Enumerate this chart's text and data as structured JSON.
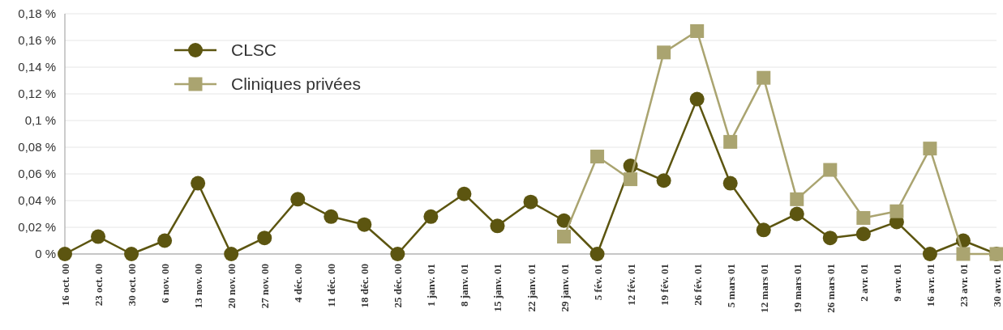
{
  "chart_data": {
    "type": "line",
    "categories": [
      "16 oct. 00",
      "23 oct. 00",
      "30 oct. 00",
      "6 nov. 00",
      "13 nov. 00",
      "20 nov. 00",
      "27 nov. 00",
      "4 déc. 00",
      "11 déc. 00",
      "18 déc. 00",
      "25 déc. 00",
      "1 janv. 01",
      "8 janv. 01",
      "15 janv. 01",
      "22 janv. 01",
      "29 janv. 01",
      "5 fév. 01",
      "12 fév. 01",
      "19 fév. 01",
      "26 fév. 01",
      "5 mars 01",
      "12 mars 01",
      "19 mars 01",
      "26 mars 01",
      "2 avr. 01",
      "9 avr. 01",
      "16 avr. 01",
      "23 avr. 01",
      "30 avr. 01"
    ],
    "series": [
      {
        "name": "CLSC",
        "color": "#5c5510",
        "marker": "circle",
        "values": [
          0,
          0.013,
          0,
          0.01,
          0.053,
          0,
          0.012,
          0.041,
          0.028,
          0.022,
          0,
          0.028,
          0.045,
          0.021,
          0.039,
          0.025,
          0,
          0.066,
          0.055,
          0.116,
          0.053,
          0.018,
          0.03,
          0.012,
          0.015,
          0.024,
          0,
          0.01,
          0
        ]
      },
      {
        "name": "Cliniques privées",
        "color": "#aaa470",
        "marker": "square",
        "values": [
          null,
          null,
          null,
          null,
          null,
          null,
          null,
          null,
          null,
          null,
          null,
          null,
          null,
          null,
          null,
          0.013,
          0.073,
          0.056,
          0.151,
          0.167,
          0.084,
          0.132,
          0.041,
          0.063,
          0.027,
          0.032,
          0.079,
          0,
          0
        ]
      }
    ],
    "ylim": [
      0,
      0.18
    ],
    "yticks": [
      {
        "value": 0,
        "label": "0 %"
      },
      {
        "value": 0.02,
        "label": "0,02 %"
      },
      {
        "value": 0.04,
        "label": "0,04 %"
      },
      {
        "value": 0.06,
        "label": "0,06 %"
      },
      {
        "value": 0.08,
        "label": "0,08 %"
      },
      {
        "value": 0.1,
        "label": "0,1 %"
      },
      {
        "value": 0.12,
        "label": "0,12 %"
      },
      {
        "value": 0.14,
        "label": "0,14 %"
      },
      {
        "value": 0.16,
        "label": "0,16 %"
      },
      {
        "value": 0.18,
        "label": "0,18 %"
      }
    ],
    "grid": "y",
    "legend": "top left",
    "line_style": "solid"
  }
}
